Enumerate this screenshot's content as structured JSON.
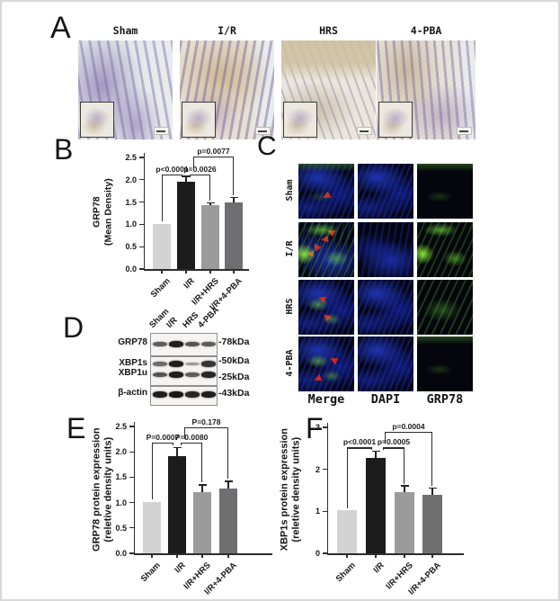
{
  "colors": {
    "bar_palette": [
      "#d3d3d3",
      "#1c1c1c",
      "#9b9b9b",
      "#6f6f72"
    ],
    "axis": "#2d2d2d",
    "fluor_green": "#7ddd3a",
    "fluor_blue": "#2233cc",
    "arrow_red": "#cf271d"
  },
  "panels": {
    "a": {
      "letter": "A",
      "groups": [
        "Sham",
        "I/R",
        "HRS",
        "4-PBA"
      ]
    },
    "b": {
      "letter": "B"
    },
    "c": {
      "letter": "C",
      "rows": [
        "Sham",
        "I/R",
        "HRS",
        "4-PBA"
      ],
      "columns": [
        "Merge",
        "DAPI",
        "GRP78"
      ],
      "arrow_counts": [
        1,
        4,
        2,
        2
      ]
    },
    "d": {
      "letter": "D",
      "lanes": [
        "Sham",
        "I/R",
        "HRS",
        "4-PBA"
      ],
      "proteins": [
        "GRP78",
        "XBP1s",
        "XBP1u",
        "β-actin"
      ],
      "weights": [
        "-78kDa",
        "-50kDa",
        "-25kDa",
        "-43kDa"
      ],
      "bands": {
        "grp78": [
          0.55,
          0.95,
          0.6,
          0.55
        ],
        "xbp1s": [
          0.45,
          0.95,
          0.15,
          0.8
        ],
        "xbp1u": [
          0.6,
          0.95,
          0.55,
          0.9
        ],
        "actin": [
          0.95,
          1.0,
          0.9,
          0.95
        ]
      }
    },
    "e": {
      "letter": "E"
    },
    "f": {
      "letter": "F"
    }
  },
  "chart_data": [
    {
      "id": "B",
      "type": "bar",
      "ylabel_lines": [
        "GRP78",
        "(Mean Density)"
      ],
      "categories": [
        "Sham",
        "I/R",
        "I/R+HRS",
        "I/R+4-PBA"
      ],
      "values": [
        1.01,
        1.96,
        1.43,
        1.5
      ],
      "errors": [
        0,
        0.12,
        0.05,
        0.1
      ],
      "bar_colors": [
        "#d3d3d3",
        "#1c1c1c",
        "#9b9b9b",
        "#6f6f72"
      ],
      "ylim": [
        0,
        2.5
      ],
      "yticks": [
        "0.0",
        "0.5",
        "1.0",
        "1.5",
        "2.0",
        "2.5"
      ],
      "grid": false,
      "significance": [
        {
          "from": "Sham",
          "to": "I/R",
          "label": "p<0.0001",
          "height": 2.12,
          "drop_from": 1.06,
          "drop_to": 2.06
        },
        {
          "from": "I/R",
          "to": "I/R+HRS",
          "label": "p=0.0026",
          "height": 2.12,
          "drop_from": 2.06,
          "drop_to": 1.53
        },
        {
          "from": "I/R",
          "to": "I/R+4-PBA",
          "label": "p=0.0077",
          "height": 2.52,
          "drop_from": 2.22,
          "drop_to": 1.66
        }
      ]
    },
    {
      "id": "E",
      "type": "bar",
      "ylabel_lines": [
        "GRP78 protein expression",
        "(reletive density units)"
      ],
      "categories": [
        "Sham",
        "I/R",
        "I/R+HRS",
        "I/R+4-PBA"
      ],
      "values": [
        1.01,
        1.91,
        1.2,
        1.27
      ],
      "errors": [
        0,
        0.17,
        0.15,
        0.15
      ],
      "bar_colors": [
        "#d3d3d3",
        "#1c1c1c",
        "#9b9b9b",
        "#6f6f72"
      ],
      "ylim": [
        0,
        2.5
      ],
      "yticks": [
        "0.0",
        "0.5",
        "1.0",
        "1.5",
        "2.0",
        "2.5"
      ],
      "grid": false,
      "significance": [
        {
          "from": "Sham",
          "to": "I/R",
          "label": "P=0.0007",
          "height": 2.18,
          "drop_from": 1.06,
          "drop_to": 2.12
        },
        {
          "from": "I/R",
          "to": "I/R+HRS",
          "label": "P=0.0080",
          "height": 2.18,
          "drop_from": 2.12,
          "drop_to": 1.4
        },
        {
          "from": "I/R",
          "to": "I/R+4-PBA",
          "label": "P=0.178",
          "height": 2.48,
          "drop_from": 2.26,
          "drop_to": 1.47
        }
      ]
    },
    {
      "id": "F",
      "type": "bar",
      "ylabel_lines": [
        "XBP1s protein expression",
        "(reletive density units)"
      ],
      "categories": [
        "Sham",
        "I/R",
        "I/R+HRS",
        "I/R+4-PBA"
      ],
      "values": [
        1.02,
        2.28,
        1.45,
        1.4
      ],
      "errors": [
        0,
        0.15,
        0.16,
        0.15
      ],
      "bar_colors": [
        "#d3d3d3",
        "#1c1c1c",
        "#9b9b9b",
        "#6f6f72"
      ],
      "ylim": [
        0,
        3
      ],
      "yticks": [
        "0",
        "1",
        "2",
        "3"
      ],
      "grid": false,
      "significance": [
        {
          "from": "Sham",
          "to": "I/R",
          "label": "p<0.0001",
          "height": 2.52,
          "drop_from": 1.07,
          "drop_to": 2.47
        },
        {
          "from": "I/R",
          "to": "I/R+HRS",
          "label": "p=0.0005",
          "height": 2.52,
          "drop_from": 2.47,
          "drop_to": 1.65
        },
        {
          "from": "I/R",
          "to": "I/R+4-PBA",
          "label": "p=0.0004",
          "height": 2.9,
          "drop_from": 2.62,
          "drop_to": 1.6
        }
      ]
    }
  ]
}
